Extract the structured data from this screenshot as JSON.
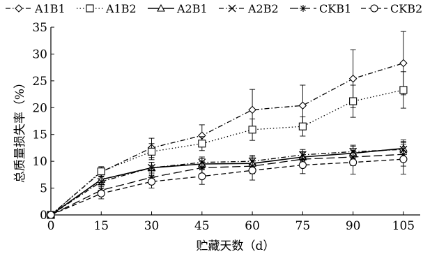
{
  "chart_data": {
    "type": "line",
    "title": "",
    "xlabel": "贮藏天数（d）",
    "ylabel": "总质量损失率（%）",
    "x": [
      0,
      15,
      30,
      45,
      60,
      75,
      90,
      105
    ],
    "xlim": [
      0,
      110
    ],
    "ylim": [
      0,
      35
    ],
    "xticks": [
      0,
      15,
      30,
      45,
      60,
      75,
      90,
      105
    ],
    "yticks": [
      0,
      5,
      10,
      15,
      20,
      25,
      30,
      35
    ],
    "grid": false,
    "legend_position": "top",
    "series": [
      {
        "name": "A1B1",
        "marker": "diamond",
        "dash": "dashdot",
        "values": [
          0,
          8.0,
          12.5,
          14.8,
          19.6,
          20.4,
          25.4,
          28.3
        ],
        "err": [
          0,
          0.8,
          1.8,
          2.0,
          3.8,
          3.8,
          5.4,
          5.9
        ]
      },
      {
        "name": "A1B2",
        "marker": "square",
        "dash": "dotted",
        "values": [
          0,
          8.1,
          11.8,
          13.3,
          15.9,
          16.5,
          21.2,
          23.3
        ],
        "err": [
          0,
          0.9,
          1.5,
          1.3,
          2.0,
          1.8,
          3.0,
          3.4
        ]
      },
      {
        "name": "A2B1",
        "marker": "triangle",
        "dash": "solid",
        "values": [
          0,
          6.6,
          8.8,
          9.5,
          9.6,
          10.8,
          11.5,
          12.4
        ],
        "err": [
          0,
          0.9,
          1.0,
          1.0,
          1.2,
          1.0,
          1.3,
          1.6
        ]
      },
      {
        "name": "A2B2",
        "marker": "x",
        "dash": "dashdot",
        "values": [
          0,
          6.2,
          8.8,
          9.8,
          10.0,
          11.2,
          11.8,
          12.2
        ],
        "err": [
          0,
          0.9,
          1.0,
          1.0,
          1.1,
          1.0,
          1.2,
          1.5
        ]
      },
      {
        "name": "CKB1",
        "marker": "asterisk",
        "dash": "longdash",
        "values": [
          0,
          4.6,
          7.0,
          8.8,
          9.1,
          10.4,
          10.8,
          11.3
        ],
        "err": [
          0,
          1.0,
          1.2,
          1.2,
          1.4,
          1.3,
          1.6,
          2.2
        ]
      },
      {
        "name": "CKB2",
        "marker": "circle",
        "dash": "dashed",
        "values": [
          0,
          4.0,
          6.2,
          7.2,
          8.3,
          9.3,
          9.8,
          10.4
        ],
        "err": [
          0,
          1.0,
          1.2,
          1.5,
          1.8,
          1.6,
          2.2,
          2.8
        ]
      }
    ]
  }
}
